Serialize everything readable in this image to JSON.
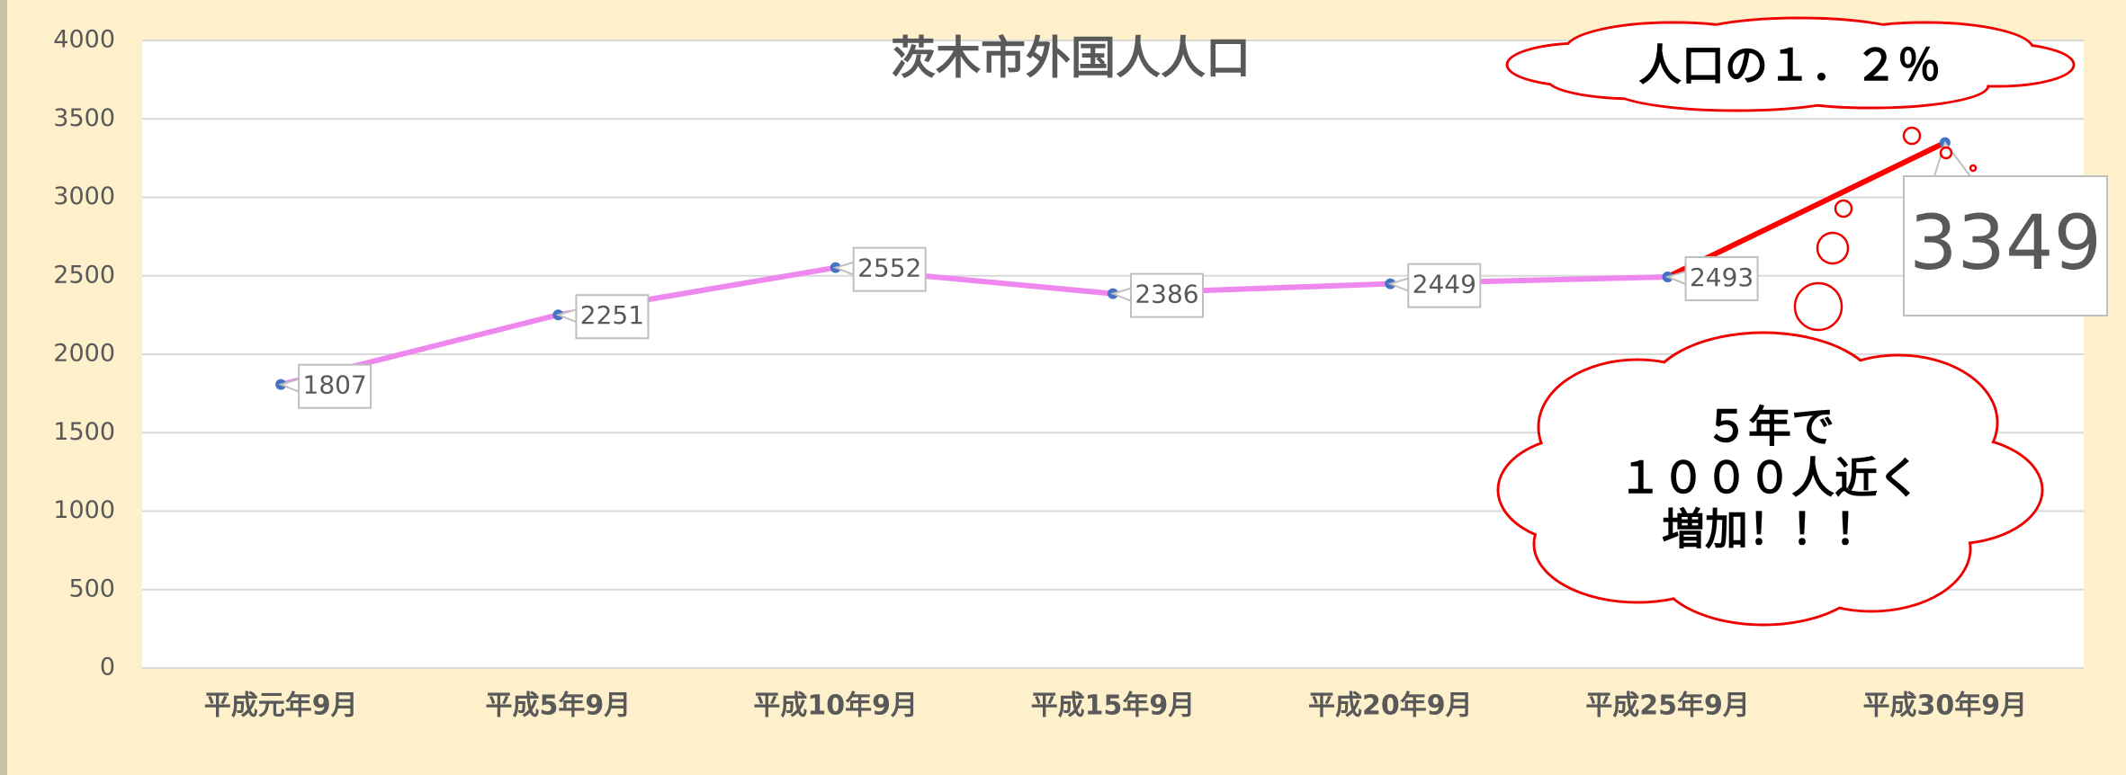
{
  "chart_data": {
    "type": "line",
    "title": "茨木市外国人人口",
    "categories": [
      "平成元年9月",
      "平成5年9月",
      "平成10年9月",
      "平成15年9月",
      "平成20年9月",
      "平成25年9月",
      "平成30年9月"
    ],
    "series": [
      {
        "name": "茨木市外国人人口",
        "color": "#ee88ee",
        "marker_color": "#4472c4",
        "values": [
          1807,
          2251,
          2552,
          2386,
          2449,
          2493,
          3349
        ],
        "segment_colors": [
          "#ee88ee",
          "#ee88ee",
          "#ee88ee",
          "#ee88ee",
          "#ee88ee",
          "#ff0000"
        ]
      }
    ],
    "ylim": [
      0,
      4000
    ],
    "yticks": [
      0,
      500,
      1000,
      1500,
      2000,
      2500,
      3000,
      3500,
      4000
    ],
    "grid": true,
    "annotations": [
      "人口の１．２％",
      [
        "５年で",
        "１０００人近く",
        "増加！！！"
      ]
    ]
  }
}
